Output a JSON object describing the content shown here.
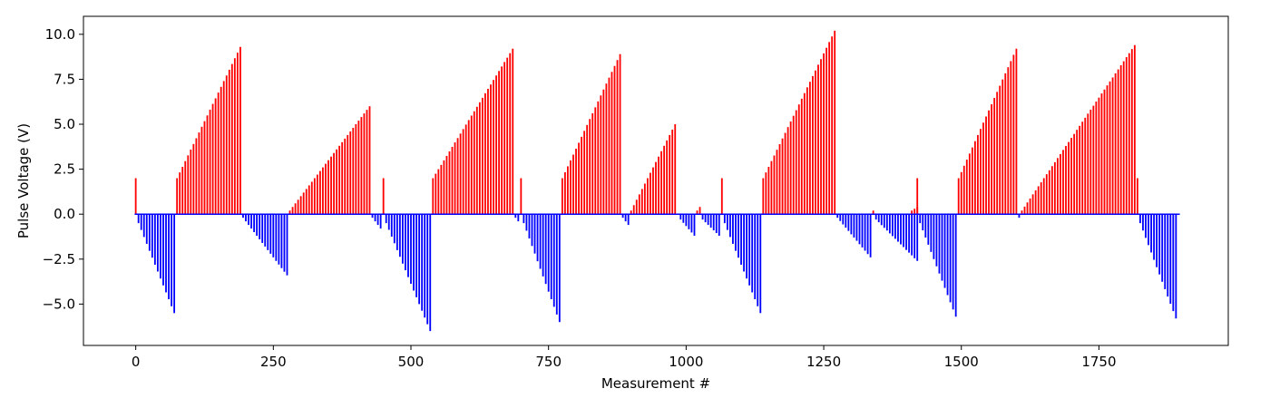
{
  "chart_data": {
    "type": "bar",
    "title": "",
    "xlabel": "Measurement #",
    "ylabel": "Pulse Voltage (V)",
    "xlim": [
      -95,
      1985
    ],
    "ylim": [
      -7.3,
      11.0
    ],
    "grid": false,
    "legend": "none",
    "xticks": [
      0,
      250,
      500,
      750,
      1000,
      1250,
      1500,
      1750
    ],
    "xtick_labels": [
      "0",
      "250",
      "500",
      "750",
      "1000",
      "1250",
      "1500",
      "1750"
    ],
    "yticks": [
      -5.0,
      -2.5,
      0.0,
      2.5,
      5.0,
      7.5,
      10.0
    ],
    "ytick_labels": [
      "−5.0",
      "−2.5",
      "0.0",
      "2.5",
      "5.0",
      "7.5",
      "10.0"
    ],
    "bar_width": 3,
    "colors": {
      "positive": "#ff0000",
      "negative": "#0000ff"
    },
    "segments": [
      {
        "start": 0,
        "count": 1,
        "from": 2.0,
        "to": 2.0
      },
      {
        "start": 5,
        "count": 14,
        "from": -0.5,
        "to": -5.5
      },
      {
        "start": 75,
        "count": 24,
        "from": 2.0,
        "to": 9.3
      },
      {
        "start": 195,
        "count": 17,
        "from": -0.2,
        "to": -3.4
      },
      {
        "start": 280,
        "count": 30,
        "from": 0.2,
        "to": 6.0
      },
      {
        "start": 430,
        "count": 4,
        "from": -0.2,
        "to": -0.8
      },
      {
        "start": 450,
        "count": 1,
        "from": 2.0,
        "to": 2.0
      },
      {
        "start": 455,
        "count": 17,
        "from": -0.5,
        "to": -6.5
      },
      {
        "start": 540,
        "count": 30,
        "from": 2.0,
        "to": 9.2
      },
      {
        "start": 690,
        "count": 2,
        "from": -0.2,
        "to": -0.4
      },
      {
        "start": 700,
        "count": 1,
        "from": 2.0,
        "to": 2.0
      },
      {
        "start": 705,
        "count": 14,
        "from": -0.5,
        "to": -6.0
      },
      {
        "start": 775,
        "count": 22,
        "from": 2.0,
        "to": 8.9
      },
      {
        "start": 885,
        "count": 3,
        "from": -0.2,
        "to": -0.6
      },
      {
        "start": 900,
        "count": 17,
        "from": 0.2,
        "to": 5.0
      },
      {
        "start": 990,
        "count": 6,
        "from": -0.3,
        "to": -1.2
      },
      {
        "start": 1020,
        "count": 2,
        "from": 0.2,
        "to": 0.4
      },
      {
        "start": 1030,
        "count": 7,
        "from": -0.3,
        "to": -1.2
      },
      {
        "start": 1065,
        "count": 1,
        "from": 2.0,
        "to": 2.0
      },
      {
        "start": 1070,
        "count": 14,
        "from": -0.5,
        "to": -5.5
      },
      {
        "start": 1140,
        "count": 27,
        "from": 2.0,
        "to": 10.2
      },
      {
        "start": 1275,
        "count": 13,
        "from": -0.2,
        "to": -2.4
      },
      {
        "start": 1340,
        "count": 1,
        "from": 0.2,
        "to": 0.2
      },
      {
        "start": 1345,
        "count": 16,
        "from": -0.3,
        "to": -2.6
      },
      {
        "start": 1410,
        "count": 3,
        "from": 0.2,
        "to": 0.4
      },
      {
        "start": 1420,
        "count": 1,
        "from": 2.0,
        "to": 2.0
      },
      {
        "start": 1425,
        "count": 14,
        "from": -0.5,
        "to": -5.7
      },
      {
        "start": 1495,
        "count": 22,
        "from": 2.0,
        "to": 9.2
      },
      {
        "start": 1605,
        "count": 1,
        "from": -0.2,
        "to": -0.2
      },
      {
        "start": 1610,
        "count": 42,
        "from": 0.2,
        "to": 9.4
      },
      {
        "start": 1820,
        "count": 1,
        "from": 2.0,
        "to": 2.0
      },
      {
        "start": 1825,
        "count": 14,
        "from": -0.5,
        "to": -5.8
      },
      {
        "start": 1895,
        "count": 1,
        "from": 0.0,
        "to": 0.0
      }
    ]
  }
}
